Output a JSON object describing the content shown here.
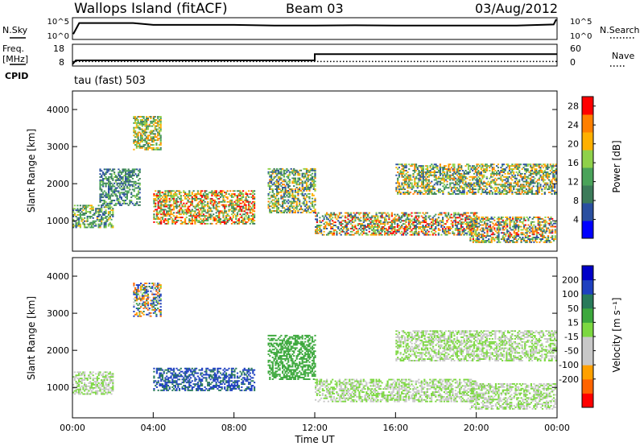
{
  "header": {
    "site": "Wallops Island (fitACF)",
    "beam": "Beam 03",
    "date": "03/Aug/2012"
  },
  "left_labels": {
    "nsky": "N.Sky",
    "freq": "Freq.",
    "freq_unit": "[MHz]",
    "cpid": "CPID"
  },
  "right_labels": {
    "nsearch": "N.Search",
    "nave": "Nave"
  },
  "cpid_text": "tau (fast) 503",
  "noise_axis_ticks": [
    "10^5",
    "10^0"
  ],
  "freq_axis_ticks": [
    "18",
    "8"
  ],
  "nave_axis_ticks": [
    "60",
    "0"
  ],
  "colors": {
    "power_scale": [
      "#0000ff",
      "#2a4fa0",
      "#3c7b5a",
      "#4aa35a",
      "#8fd14a",
      "#ffb000",
      "#ff7f00",
      "#ff0000"
    ],
    "velocity_scale": [
      "#ff0000",
      "#ff6400",
      "#ffa000",
      "#c8c8c8",
      "#c8c8c8",
      "#7cd840",
      "#3ca83c",
      "#287a5a",
      "#1e40c0",
      "#0000c8"
    ]
  },
  "chart_data": [
    {
      "type": "line",
      "title": "",
      "series": [
        {
          "name": "N.Sky",
          "style": "solid",
          "x": [
            "00:00",
            "00:20",
            "01:00",
            "02:00",
            "03:00",
            "04:00",
            "06:00",
            "08:00",
            "10:00",
            "12:00",
            "14:00",
            "16:00",
            "18:00",
            "20:00",
            "22:00",
            "23:50",
            "24:00"
          ],
          "values": [
            "10^1",
            "10^4",
            "10^4",
            "10^4",
            "10^4",
            "10^3.5",
            "10^3.5",
            "10^3.5",
            "10^3.3",
            "10^3.3",
            "10^3.4",
            "10^3.3",
            "10^3.3",
            "10^3.3",
            "10^3.3",
            "10^3.6",
            "10^5"
          ]
        }
      ],
      "ylabel": "N.Sky",
      "y2label": "N.Search",
      "yticks": [
        "10^5",
        "10^0"
      ],
      "y2ticks": [
        "10^5",
        "10^0"
      ]
    },
    {
      "type": "line",
      "title": "",
      "series": [
        {
          "name": "Freq.",
          "style": "solid",
          "x": [
            "00:00",
            "00:10",
            "12:00",
            "12:00",
            "24:00"
          ],
          "values": [
            8.5,
            10.4,
            10.4,
            13.5,
            13.5
          ]
        },
        {
          "name": "Nave",
          "style": "dotted",
          "x": [
            "00:00",
            "24:00"
          ],
          "values": [
            11,
            11
          ]
        }
      ],
      "ylabel": "Freq. [MHz]",
      "yticks": [
        "18",
        "8"
      ],
      "ylim": [
        8,
        18
      ],
      "y2label": "Nave",
      "y2ticks": [
        "60",
        "0"
      ],
      "y2lim": [
        0,
        60
      ]
    },
    {
      "type": "heatmap",
      "title": "",
      "xlabel": "",
      "ylabel": "Slant Range [km]",
      "xlim": [
        "00:00",
        "24:00"
      ],
      "ylim": [
        180,
        4500
      ],
      "yticks": [
        "1000",
        "2000",
        "3000",
        "4000"
      ],
      "colorbar_label": "Power [dB]",
      "colorbar_ticks": [
        "4",
        "8",
        "12",
        "16",
        "20",
        "24",
        "28"
      ],
      "colorbar_range": [
        0,
        30
      ],
      "features": [
        {
          "time": [
            "00:00",
            "02:00"
          ],
          "range_km": [
            800,
            1400
          ],
          "power_db": [
            4,
            20
          ]
        },
        {
          "time": [
            "01:20",
            "03:20"
          ],
          "range_km": [
            1400,
            2400
          ],
          "power_db": [
            4,
            16
          ]
        },
        {
          "time": [
            "03:00",
            "04:20"
          ],
          "range_km": [
            2900,
            3800
          ],
          "power_db": [
            8,
            24
          ]
        },
        {
          "time": [
            "04:00",
            "09:00"
          ],
          "range_km": [
            900,
            1800
          ],
          "power_db": [
            8,
            30
          ]
        },
        {
          "time": [
            "09:40",
            "12:00"
          ],
          "range_km": [
            1200,
            2400
          ],
          "power_db": [
            4,
            24
          ]
        },
        {
          "time": [
            "12:00",
            "20:00"
          ],
          "range_km": [
            600,
            1200
          ],
          "power_db": [
            4,
            30
          ]
        },
        {
          "time": [
            "16:00",
            "24:00"
          ],
          "range_km": [
            1700,
            2500
          ],
          "power_db": [
            4,
            26
          ]
        },
        {
          "time": [
            "19:40",
            "24:00"
          ],
          "range_km": [
            400,
            1100
          ],
          "power_db": [
            4,
            28
          ]
        }
      ]
    },
    {
      "type": "heatmap",
      "title": "",
      "xlabel": "Time UT",
      "ylabel": "Slant Range [km]",
      "xticks": [
        "00:00",
        "04:00",
        "08:00",
        "12:00",
        "16:00",
        "20:00",
        "00:00"
      ],
      "yticks": [
        "1000",
        "2000",
        "3000",
        "4000"
      ],
      "xlim": [
        "00:00",
        "24:00"
      ],
      "ylim": [
        180,
        4500
      ],
      "colorbar_label": "Velocity [m s⁻¹]",
      "colorbar_ticks": [
        "200",
        "100",
        "50",
        "15",
        "-15",
        "-50",
        "-100",
        "-200"
      ],
      "features": [
        {
          "time": [
            "00:00",
            "02:00"
          ],
          "range_km": [
            800,
            1400
          ],
          "velocity": [
            -15,
            15
          ]
        },
        {
          "time": [
            "03:00",
            "04:20"
          ],
          "range_km": [
            2900,
            3800
          ],
          "velocity": [
            -200,
            200
          ]
        },
        {
          "time": [
            "04:00",
            "09:00"
          ],
          "range_km": [
            900,
            1500
          ],
          "velocity": [
            50,
            200
          ]
        },
        {
          "time": [
            "09:40",
            "12:00"
          ],
          "range_km": [
            1200,
            2400
          ],
          "velocity": [
            15,
            50
          ]
        },
        {
          "time": [
            "12:00",
            "20:00"
          ],
          "range_km": [
            600,
            1200
          ],
          "velocity": [
            -15,
            15
          ]
        },
        {
          "time": [
            "16:00",
            "24:00"
          ],
          "range_km": [
            1700,
            2500
          ],
          "velocity": [
            -15,
            15
          ]
        },
        {
          "time": [
            "19:40",
            "24:00"
          ],
          "range_km": [
            400,
            1100
          ],
          "velocity": [
            -15,
            15
          ]
        }
      ]
    }
  ]
}
